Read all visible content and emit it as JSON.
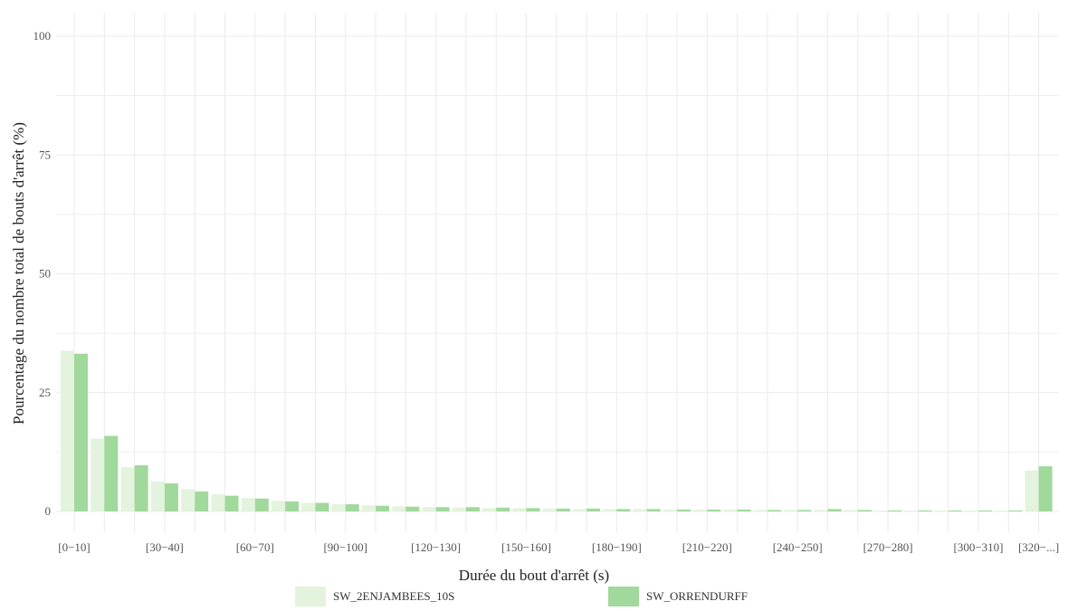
{
  "chart_data": {
    "type": "bar",
    "xlabel": "Durée du bout d'arrêt (s)",
    "ylabel": "Pourcentage du nombre total de bouts d'arrêt (%)",
    "ylim": [
      0,
      100
    ],
    "y_ticks": [
      0,
      25,
      50,
      75,
      100
    ],
    "grid": true,
    "legend_position": "bottom",
    "categories": [
      "[0−10]",
      "[10−20]",
      "[20−30]",
      "[30−40]",
      "[40−50]",
      "[50−60]",
      "[60−70]",
      "[70−80]",
      "[80−90]",
      "[90−100]",
      "[100−110]",
      "[110−120]",
      "[120−130]",
      "[130−140]",
      "[140−150]",
      "[150−160]",
      "[160−170]",
      "[170−180]",
      "[180−190]",
      "[190−200]",
      "[200−210]",
      "[210−220]",
      "[220−230]",
      "[230−240]",
      "[240−250]",
      "[250−260]",
      "[260−270]",
      "[270−280]",
      "[280−290]",
      "[290−300]",
      "[300−310]",
      "[310−320]",
      "[320−...]"
    ],
    "visible_tick_labels": [
      "[0−10]",
      "[30−40]",
      "[60−70]",
      "[90−100]",
      "[120−130]",
      "[150−160]",
      "[180−190]",
      "[210−220]",
      "[240−250]",
      "[270−280]",
      "[300−310]",
      "[320−...]"
    ],
    "series": [
      {
        "name": "SW_2ENJAMBEES_10S",
        "color": "#e3f3dd",
        "values": [
          33.8,
          15.3,
          9.3,
          6.3,
          4.7,
          3.6,
          2.8,
          2.2,
          1.8,
          1.5,
          1.3,
          1.1,
          0.9,
          0.8,
          0.7,
          0.7,
          0.6,
          0.5,
          0.5,
          0.5,
          0.4,
          0.4,
          0.4,
          0.3,
          0.3,
          0.3,
          0.3,
          0.2,
          0.2,
          0.2,
          0.2,
          0.2,
          8.6
        ]
      },
      {
        "name": "SW_ORRENDURFF",
        "color": "#a0d99b",
        "values": [
          33.2,
          15.9,
          9.7,
          5.9,
          4.2,
          3.3,
          2.7,
          2.1,
          1.8,
          1.5,
          1.2,
          1.0,
          0.9,
          0.9,
          0.8,
          0.7,
          0.6,
          0.6,
          0.5,
          0.5,
          0.4,
          0.4,
          0.4,
          0.3,
          0.3,
          0.5,
          0.3,
          0.2,
          0.2,
          0.2,
          0.2,
          0.2,
          9.5
        ]
      }
    ]
  }
}
